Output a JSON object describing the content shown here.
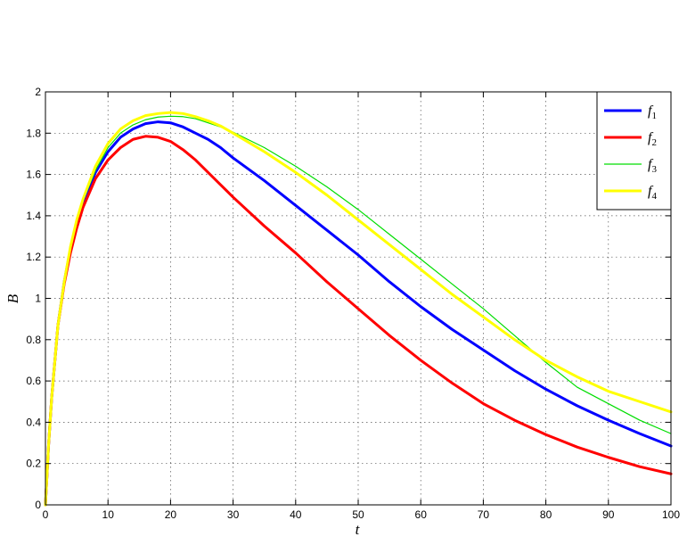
{
  "chart_data": {
    "type": "line",
    "title": "",
    "xlabel": "t",
    "ylabel": "B",
    "xlim": [
      0,
      100
    ],
    "ylim": [
      0,
      2
    ],
    "xticks": [
      0,
      10,
      20,
      30,
      40,
      50,
      60,
      70,
      80,
      90,
      100
    ],
    "yticks": [
      0,
      0.2,
      0.4,
      0.6,
      0.8,
      1,
      1.2,
      1.4,
      1.6,
      1.8,
      2
    ],
    "grid": true,
    "legend_position": "top-right",
    "x": [
      0,
      0.5,
      1,
      2,
      3,
      4,
      5,
      6,
      8,
      10,
      12,
      14,
      16,
      18,
      20,
      22,
      24,
      26,
      28,
      30,
      35,
      40,
      45,
      50,
      55,
      60,
      65,
      70,
      75,
      80,
      85,
      90,
      95,
      100
    ],
    "series": [
      {
        "name": "f1",
        "color": "#0000ff",
        "line_width": 3,
        "values": [
          0,
          0.29,
          0.52,
          0.87,
          1.08,
          1.24,
          1.36,
          1.46,
          1.61,
          1.71,
          1.78,
          1.82,
          1.846,
          1.855,
          1.85,
          1.83,
          1.8,
          1.77,
          1.73,
          1.68,
          1.57,
          1.45,
          1.33,
          1.21,
          1.08,
          0.96,
          0.85,
          0.75,
          0.65,
          0.56,
          0.48,
          0.41,
          0.345,
          0.285
        ]
      },
      {
        "name": "f2",
        "color": "#ff0000",
        "line_width": 3,
        "values": [
          0,
          0.29,
          0.52,
          0.87,
          1.07,
          1.22,
          1.34,
          1.44,
          1.58,
          1.67,
          1.73,
          1.77,
          1.785,
          1.78,
          1.76,
          1.72,
          1.67,
          1.61,
          1.55,
          1.49,
          1.35,
          1.22,
          1.08,
          0.95,
          0.82,
          0.7,
          0.59,
          0.49,
          0.41,
          0.34,
          0.28,
          0.23,
          0.185,
          0.15
        ]
      },
      {
        "name": "f3",
        "color": "#00dd00",
        "line_width": 1.2,
        "values": [
          0,
          0.29,
          0.52,
          0.87,
          1.08,
          1.24,
          1.37,
          1.47,
          1.62,
          1.73,
          1.8,
          1.84,
          1.865,
          1.878,
          1.882,
          1.88,
          1.87,
          1.85,
          1.83,
          1.805,
          1.73,
          1.64,
          1.54,
          1.43,
          1.31,
          1.19,
          1.07,
          0.95,
          0.82,
          0.69,
          0.57,
          0.49,
          0.41,
          0.345
        ]
      },
      {
        "name": "f4",
        "color": "#ffff00",
        "line_width": 3,
        "values": [
          0,
          0.29,
          0.52,
          0.87,
          1.08,
          1.25,
          1.38,
          1.48,
          1.64,
          1.75,
          1.82,
          1.86,
          1.885,
          1.895,
          1.9,
          1.895,
          1.88,
          1.86,
          1.835,
          1.8,
          1.71,
          1.61,
          1.5,
          1.38,
          1.26,
          1.14,
          1.02,
          0.91,
          0.8,
          0.7,
          0.62,
          0.55,
          0.5,
          0.45
        ]
      }
    ]
  }
}
